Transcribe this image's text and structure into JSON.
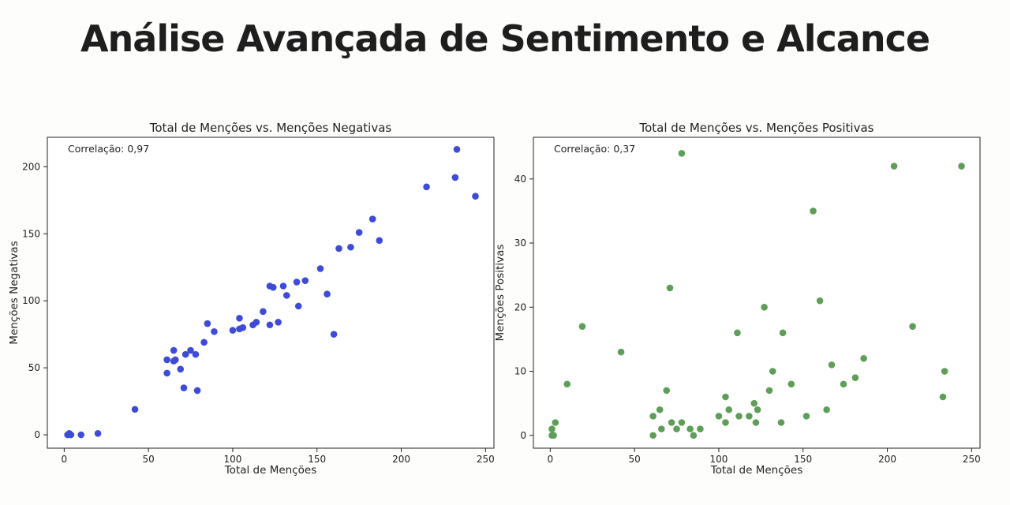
{
  "page": {
    "title": "Análise Avançada de Sentimento e Alcance"
  },
  "colors": {
    "negative": "#3d4bd6",
    "positive": "#5e9e58"
  },
  "chart_data": [
    {
      "type": "scatter",
      "title": "Total de Menções vs. Menções Negativas",
      "xlabel": "Total de Menções",
      "ylabel": "Menções Negativas",
      "annotation": "Correlação: 0,97",
      "xlim": [
        -10,
        255
      ],
      "ylim": [
        -10,
        222
      ],
      "xticks": [
        0,
        50,
        100,
        150,
        200,
        250
      ],
      "yticks": [
        0,
        50,
        100,
        150,
        200
      ],
      "series": [
        {
          "name": "Menções Negativas",
          "color": "#3d4bd6",
          "points": [
            [
              2,
              0
            ],
            [
              3,
              1
            ],
            [
              4,
              0
            ],
            [
              10,
              0
            ],
            [
              20,
              1
            ],
            [
              42,
              19
            ],
            [
              61,
              46
            ],
            [
              61,
              56
            ],
            [
              65,
              55
            ],
            [
              65,
              63
            ],
            [
              66,
              56
            ],
            [
              69,
              49
            ],
            [
              71,
              35
            ],
            [
              72,
              60
            ],
            [
              75,
              63
            ],
            [
              78,
              60
            ],
            [
              79,
              33
            ],
            [
              83,
              69
            ],
            [
              85,
              83
            ],
            [
              89,
              77
            ],
            [
              100,
              78
            ],
            [
              104,
              79
            ],
            [
              104,
              87
            ],
            [
              106,
              80
            ],
            [
              112,
              82
            ],
            [
              114,
              84
            ],
            [
              118,
              92
            ],
            [
              122,
              82
            ],
            [
              122,
              111
            ],
            [
              124,
              110
            ],
            [
              127,
              84
            ],
            [
              130,
              111
            ],
            [
              132,
              104
            ],
            [
              138,
              114
            ],
            [
              139,
              96
            ],
            [
              143,
              115
            ],
            [
              152,
              124
            ],
            [
              156,
              105
            ],
            [
              160,
              75
            ],
            [
              163,
              139
            ],
            [
              170,
              140
            ],
            [
              175,
              151
            ],
            [
              183,
              161
            ],
            [
              187,
              145
            ],
            [
              215,
              185
            ],
            [
              232,
              192
            ],
            [
              233,
              213
            ],
            [
              244,
              178
            ]
          ]
        }
      ]
    },
    {
      "type": "scatter",
      "title": "Total de Menções vs. Menções Positivas",
      "xlabel": "Total de Menções",
      "ylabel": "Menções Positivas",
      "annotation": "Correlação: 0,37",
      "xlim": [
        -10,
        255
      ],
      "ylim": [
        -2,
        46.5
      ],
      "xticks": [
        0,
        50,
        100,
        150,
        200,
        250
      ],
      "yticks": [
        0,
        10,
        20,
        30,
        40
      ],
      "series": [
        {
          "name": "Menções Positivas",
          "color": "#5e9e58",
          "points": [
            [
              1,
              0
            ],
            [
              1,
              1
            ],
            [
              2,
              0
            ],
            [
              3,
              2
            ],
            [
              10,
              8
            ],
            [
              19,
              17
            ],
            [
              42,
              13
            ],
            [
              61,
              0
            ],
            [
              61,
              3
            ],
            [
              65,
              4
            ],
            [
              66,
              1
            ],
            [
              69,
              7
            ],
            [
              71,
              23
            ],
            [
              72,
              2
            ],
            [
              75,
              1
            ],
            [
              78,
              44
            ],
            [
              78,
              2
            ],
            [
              83,
              1
            ],
            [
              85,
              0
            ],
            [
              89,
              1
            ],
            [
              100,
              3
            ],
            [
              104,
              6
            ],
            [
              104,
              2
            ],
            [
              106,
              4
            ],
            [
              111,
              16
            ],
            [
              112,
              3
            ],
            [
              118,
              3
            ],
            [
              121,
              5
            ],
            [
              122,
              2
            ],
            [
              123,
              4
            ],
            [
              127,
              20
            ],
            [
              130,
              7
            ],
            [
              132,
              10
            ],
            [
              137,
              2
            ],
            [
              138,
              16
            ],
            [
              143,
              8
            ],
            [
              152,
              3
            ],
            [
              156,
              35
            ],
            [
              160,
              21
            ],
            [
              164,
              4
            ],
            [
              167,
              11
            ],
            [
              174,
              8
            ],
            [
              181,
              9
            ],
            [
              186,
              12
            ],
            [
              204,
              42
            ],
            [
              215,
              17
            ],
            [
              233,
              6
            ],
            [
              234,
              10
            ],
            [
              244,
              42
            ]
          ]
        }
      ]
    }
  ]
}
